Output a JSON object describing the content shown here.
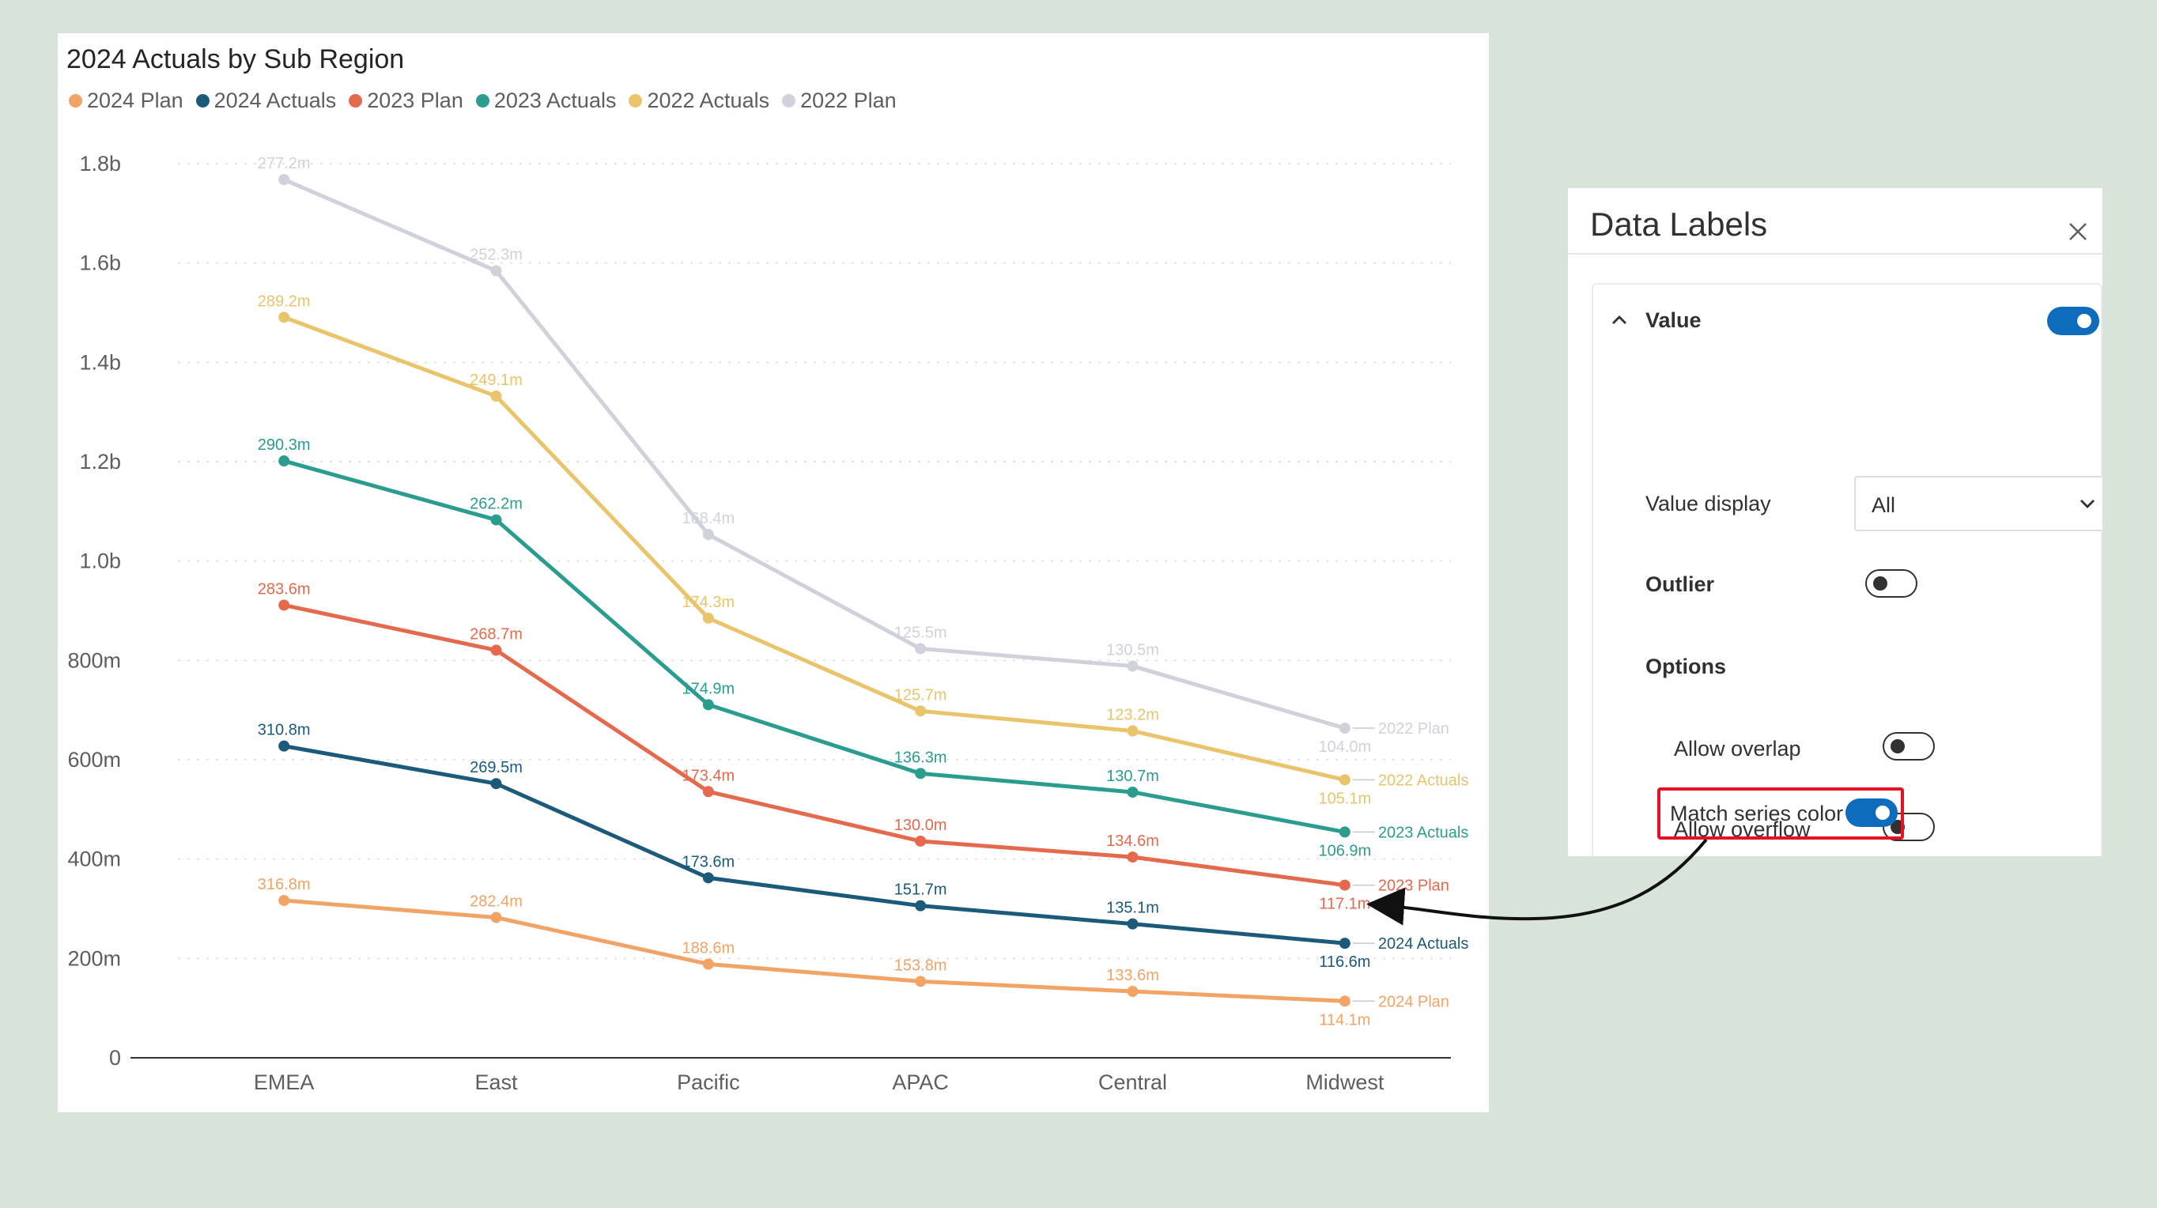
{
  "chart_data": {
    "type": "line",
    "title": "2024 Actuals by Sub Region",
    "categories": [
      "EMEA",
      "East",
      "Pacific",
      "APAC",
      "Central",
      "Midwest"
    ],
    "ylim": [
      0,
      1.8
    ],
    "y_unit": "billions",
    "y_ticks": [
      0,
      0.2,
      0.4,
      0.6,
      0.8,
      1.0,
      1.2,
      1.4,
      1.6,
      1.8
    ],
    "y_tick_labels": [
      "0",
      "200m",
      "400m",
      "600m",
      "800m",
      "1.0b",
      "1.2b",
      "1.4b",
      "1.6b",
      "1.8b"
    ],
    "grid": true,
    "legend_position": "top-left",
    "series": [
      {
        "name": "2024 Plan",
        "color": "#f2a366",
        "values": [
          0.3168,
          0.2824,
          0.1886,
          0.1538,
          0.1336,
          0.1141
        ],
        "labels": [
          "316.8m",
          "282.4m",
          "188.6m",
          "153.8m",
          "133.6m",
          "114.1m"
        ]
      },
      {
        "name": "2024 Actuals",
        "color": "#1b5a7a",
        "values": [
          0.6276,
          0.5519,
          0.3623,
          0.3061,
          0.2695,
          0.2305
        ],
        "labels": [
          "310.8m",
          "269.5m",
          "173.6m",
          "151.7m",
          "135.1m",
          "116.6m"
        ]
      },
      {
        "name": "2023 Plan",
        "color": "#e5694d",
        "values": [
          0.9112,
          0.8206,
          0.5359,
          0.4361,
          0.4041,
          0.3476
        ],
        "labels": [
          "283.6m",
          "268.7m",
          "173.4m",
          "130.0m",
          "134.6m",
          "117.1m"
        ]
      },
      {
        "name": "2023 Actuals",
        "color": "#2a9d8f",
        "values": [
          1.2015,
          1.0829,
          0.7108,
          0.5724,
          0.5348,
          0.4545
        ],
        "labels": [
          "290.3m",
          "262.2m",
          "174.9m",
          "136.3m",
          "130.7m",
          "106.9m"
        ]
      },
      {
        "name": "2022 Actuals",
        "color": "#e9c46a",
        "values": [
          1.4907,
          1.332,
          0.8851,
          0.6981,
          0.658,
          0.5596
        ],
        "labels": [
          "289.2m",
          "249.1m",
          "174.3m",
          "125.7m",
          "123.2m",
          "105.1m"
        ]
      },
      {
        "name": "2022 Plan",
        "color": "#cfd2db",
        "values": [
          1.7679,
          1.5843,
          1.0535,
          0.8236,
          0.7885,
          0.6636
        ],
        "labels": [
          "277.2m",
          "252.3m",
          "168.4m",
          "125.5m",
          "130.5m",
          "104.0m"
        ]
      }
    ]
  },
  "format_pane": {
    "title": "Data Labels",
    "value_section": {
      "label": "Value",
      "toggle_on": true,
      "value_display_label": "Value display",
      "value_display_selected": "All",
      "outlier_label": "Outlier",
      "outlier_on": false,
      "options_label": "Options",
      "allow_overlap_label": "Allow overlap",
      "allow_overlap_on": false,
      "allow_overflow_label": "Allow overflow",
      "allow_overflow_on": false,
      "match_series_color_label": "Match series color",
      "match_series_color_on": true
    }
  },
  "icons": {
    "close": "close-icon",
    "collapse": "chevron-up-icon",
    "dropdown": "chevron-down-icon"
  },
  "colors": {
    "accent": "#0f6cbd",
    "highlight": "#e81123",
    "background": "#d8e4da"
  }
}
